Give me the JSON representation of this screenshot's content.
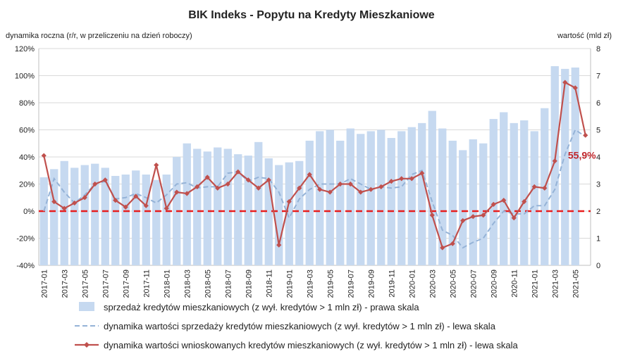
{
  "chart_data": {
    "type": "bar+line",
    "title": "BIK Indeks - Popytu na Kredyty Mieszkaniowe",
    "ylabel_left": "dynamika roczna (r/r, w przeliczeniu na dzień roboczy)",
    "ylabel_right": "wartość (mld zł)",
    "ylim_left": [
      -40,
      120
    ],
    "ylim_right": [
      0,
      8
    ],
    "yticks_left": [
      "-40%",
      "-20%",
      "0%",
      "20%",
      "40%",
      "60%",
      "80%",
      "100%",
      "120%"
    ],
    "yticks_right": [
      "0",
      "1",
      "2",
      "3",
      "4",
      "5",
      "6",
      "7",
      "8"
    ],
    "categories": [
      "2017-01",
      "2017-02",
      "2017-03",
      "2017-04",
      "2017-05",
      "2017-06",
      "2017-07",
      "2017-08",
      "2017-09",
      "2017-10",
      "2017-11",
      "2017-12",
      "2018-01",
      "2018-02",
      "2018-03",
      "2018-04",
      "2018-05",
      "2018-06",
      "2018-07",
      "2018-08",
      "2018-09",
      "2018-10",
      "2018-11",
      "2018-12",
      "2019-01",
      "2019-02",
      "2019-03",
      "2019-04",
      "2019-05",
      "2019-06",
      "2019-07",
      "2019-08",
      "2019-09",
      "2019-10",
      "2019-11",
      "2019-12",
      "2020-01",
      "2020-02",
      "2020-03",
      "2020-04",
      "2020-05",
      "2020-06",
      "2020-07",
      "2020-08",
      "2020-09",
      "2020-10",
      "2020-11",
      "2020-12",
      "2021-01",
      "2021-02",
      "2021-03",
      "2021-04",
      "2021-05",
      "2021-06"
    ],
    "series": [
      {
        "name": "sprzedaż kredytów mieszkaniowych (z wył. kredytów > 1 mln zł) - prawa skala",
        "kind": "bar",
        "axis": "right",
        "color": "#c6d9f0",
        "values": [
          3.25,
          3.55,
          3.85,
          3.6,
          3.7,
          3.75,
          3.6,
          3.3,
          3.35,
          3.5,
          3.35,
          3.15,
          3.35,
          4.0,
          4.5,
          4.3,
          4.2,
          4.35,
          4.3,
          4.1,
          4.05,
          4.55,
          3.95,
          3.7,
          3.8,
          3.85,
          4.6,
          4.95,
          5.0,
          4.6,
          5.05,
          4.85,
          4.95,
          5.0,
          4.7,
          4.95,
          5.1,
          5.25,
          5.7,
          5.05,
          4.6,
          4.25,
          4.65,
          4.5,
          5.4,
          5.65,
          5.25,
          5.35,
          4.95,
          5.8,
          7.35,
          7.25,
          7.3,
          0
        ]
      },
      {
        "name": "dynamika wartości sprzedaży kredytów mieszkaniowych (z wył. kredytów > 1 mln zł) - lewa skala",
        "kind": "line-dashed",
        "axis": "left",
        "color": "#95b3d7",
        "values": [
          0,
          24,
          14,
          6,
          12,
          20,
          22,
          9,
          10,
          13,
          10,
          6,
          12,
          20,
          21,
          17,
          18,
          18,
          28,
          29,
          22,
          25,
          24,
          14,
          -5,
          9,
          16,
          20,
          20,
          20,
          24,
          20,
          16,
          18,
          17,
          18,
          27,
          30,
          7,
          -14,
          -18,
          -27,
          -23,
          -20,
          -9,
          0,
          -2,
          -2,
          4,
          4,
          16,
          42,
          60,
          55
        ]
      },
      {
        "name": "dynamika wartości wnioskowanych kredytów mieszkaniowych (z wył. kredytów > 1 mln zł) - lewa skala",
        "kind": "line-marker",
        "axis": "left",
        "color": "#c0504d",
        "values": [
          41,
          7,
          2,
          6,
          10,
          20,
          23,
          8,
          3,
          11,
          4,
          34,
          2,
          14,
          13,
          18,
          25,
          17,
          20,
          29,
          23,
          17,
          23,
          -25,
          7,
          17,
          27,
          16,
          14,
          20,
          20,
          14,
          16,
          18,
          22,
          24,
          24,
          28,
          -3,
          -27,
          -24,
          -7,
          -4,
          -3,
          5,
          8,
          -5,
          7,
          18,
          17,
          37,
          95,
          91,
          56
        ]
      }
    ],
    "reference_line": {
      "axis": "left",
      "value": 0,
      "color": "#e81e1e",
      "style": "dashed"
    },
    "annotation": {
      "text": "55,9%",
      "category": "2021-06",
      "value": 55.9
    },
    "xtick_labels": [
      "2017-01",
      "2017-03",
      "2017-05",
      "2017-07",
      "2017-09",
      "2017-11",
      "2018-01",
      "2018-03",
      "2018-05",
      "2018-07",
      "2018-09",
      "2018-11",
      "2019-01",
      "2019-03",
      "2019-05",
      "2019-07",
      "2019-09",
      "2019-11",
      "2020-01",
      "2020-03",
      "2020-05",
      "2020-07",
      "2020-09",
      "2020-11",
      "2021-01",
      "2021-03",
      "2021-05"
    ],
    "legend_position": "bottom"
  }
}
